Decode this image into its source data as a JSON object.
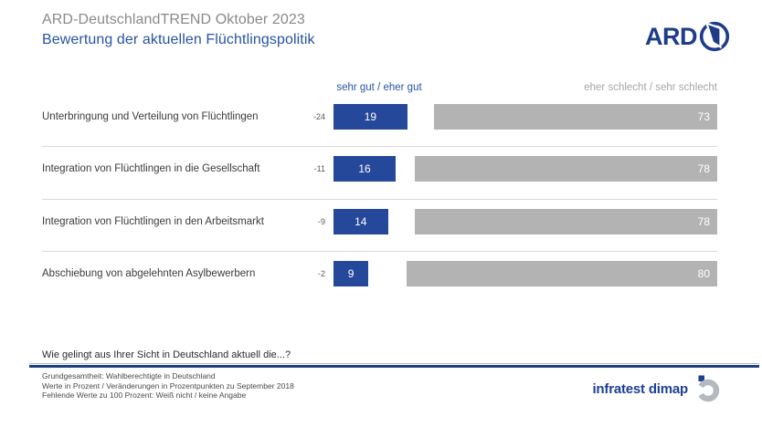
{
  "header": {
    "pretitle": "ARD-DeutschlandTREND Oktober 2023",
    "title": "Bewertung der aktuellen Flüchtlingspolitik",
    "ard_logo_text": "ARD"
  },
  "chart_data": {
    "type": "bar",
    "orientation": "horizontal",
    "unit": "Prozent",
    "legend": {
      "good": "sehr gut / eher gut",
      "bad": "eher schlecht / sehr schlecht"
    },
    "layout": {
      "good_bars_left_aligned": true,
      "bad_bars_right_aligned": true,
      "value_labels_inside_bars": true
    },
    "colors": {
      "good_bar": "#26489b",
      "bad_bar": "#b3b3b3",
      "value_label": "#ffffff"
    },
    "rows": [
      {
        "label": "Unterbringung und Verteilung von Flüchtlingen",
        "change": "-24",
        "good": 19,
        "bad": 73
      },
      {
        "label": "Integration von Flüchtlingen in die Gesellschaft",
        "change": "-11",
        "good": 16,
        "bad": 78
      },
      {
        "label": "Integration von Flüchtlingen in den Arbeitsmarkt",
        "change": "-9",
        "good": 14,
        "bad": 78
      },
      {
        "label": "Abschiebung von abgelehnten Asylbewerbern",
        "change": "-2",
        "good": 9,
        "bad": 80
      }
    ]
  },
  "footer": {
    "question": "Wie gelingt aus Ihrer Sicht in Deutschland aktuell die...?",
    "notes": [
      "Grundgesamtheit: Wahlberechtigte in Deutschland",
      "Werte in Prozent / Veränderungen in Prozentpunkten zu September 2018",
      "Fehlende Werte zu 100 Prozent: Weiß nicht / keine Angabe"
    ],
    "source_logo_text": "infratest dimap"
  }
}
